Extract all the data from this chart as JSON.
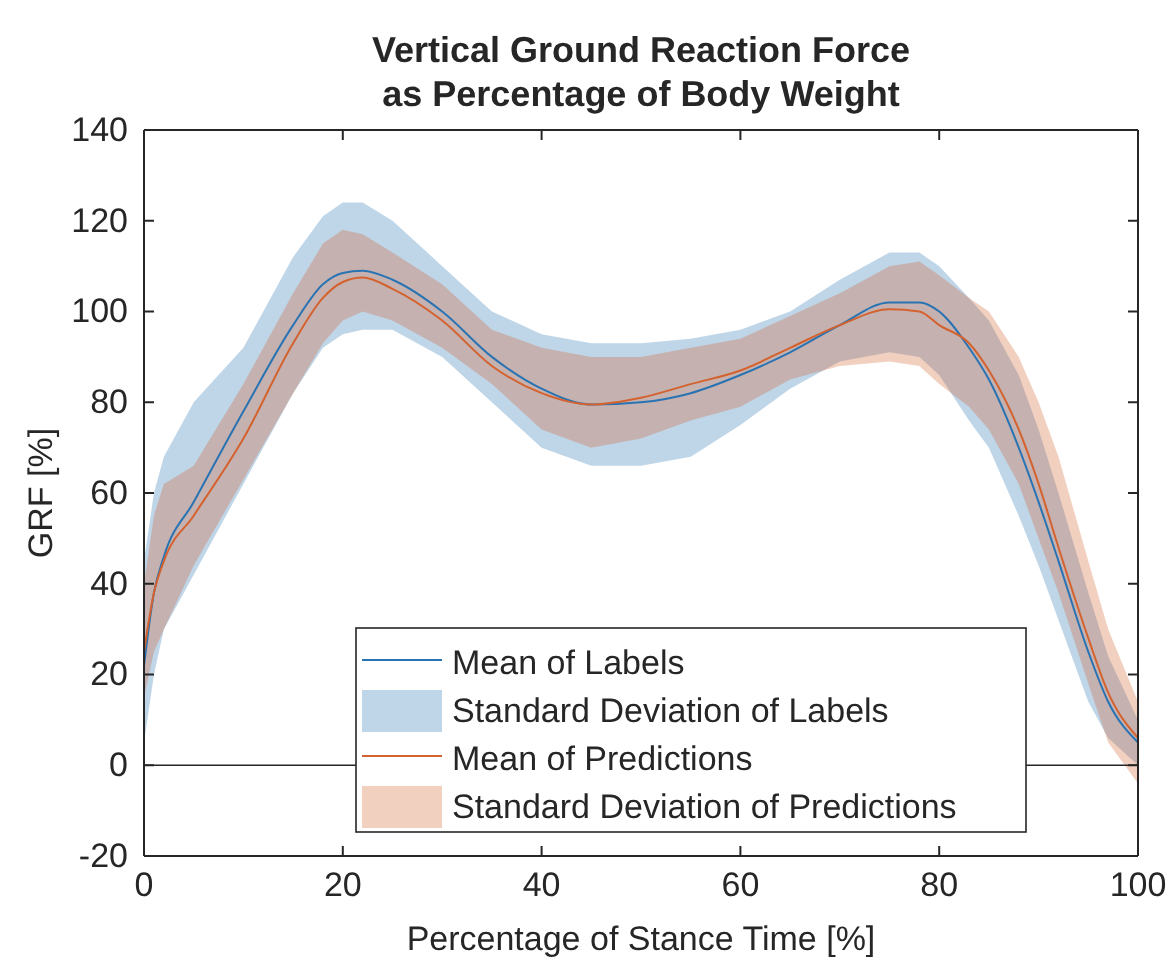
{
  "chart_data": {
    "type": "line",
    "title": "Vertical Ground Reaction Force\nas Percentage of Body Weight",
    "xlabel": "Percentage of Stance Time [%]",
    "ylabel": "GRF [%]",
    "x": [
      0,
      1,
      2,
      5,
      10,
      15,
      18,
      20,
      22,
      25,
      30,
      35,
      40,
      45,
      50,
      55,
      60,
      65,
      70,
      75,
      78,
      80,
      83,
      85,
      88,
      90,
      92,
      95,
      97,
      100
    ],
    "series": [
      {
        "name": "Mean of Labels",
        "type": "line",
        "color": "#2a73b3",
        "values": [
          22,
          38,
          46,
          58,
          78,
          97,
          106,
          108.5,
          109,
          107,
          100,
          90,
          83,
          79.5,
          80,
          82,
          86,
          91,
          97,
          102,
          102,
          100,
          92,
          85,
          70,
          58,
          45,
          25,
          14,
          5
        ],
        "lower": [
          5,
          20,
          30,
          42,
          62,
          82,
          92,
          95,
          96,
          96,
          90,
          80,
          70,
          66,
          66,
          68,
          75,
          83,
          89,
          91,
          90,
          86,
          76,
          70,
          55,
          44,
          32,
          14,
          6,
          0
        ],
        "upper": [
          45,
          60,
          68,
          80,
          92,
          112,
          121,
          124,
          124,
          120,
          110,
          100,
          95,
          93,
          93,
          94,
          96,
          100,
          107,
          113,
          113,
          110,
          103,
          98,
          86,
          74,
          60,
          38,
          24,
          10
        ]
      },
      {
        "name": "Mean of Predictions",
        "color": "#d4622e",
        "values": [
          25,
          38,
          45,
          55,
          72,
          93,
          103,
          106.5,
          107.5,
          105,
          98,
          88,
          82,
          79.5,
          81,
          84,
          87,
          92,
          97,
          100.5,
          100,
          97,
          93,
          87,
          74,
          62,
          48,
          28,
          16,
          6
        ],
        "lower": [
          15,
          25,
          30,
          44,
          63,
          82,
          93,
          98,
          100,
          98,
          92,
          84,
          74,
          70,
          72,
          76,
          79,
          85,
          88,
          89,
          88,
          84,
          79,
          74,
          62,
          50,
          38,
          18,
          5,
          -4
        ],
        "upper": [
          40,
          55,
          62,
          66,
          84,
          104,
          115,
          118,
          117,
          113,
          106,
          96,
          92,
          90,
          90,
          92,
          94,
          99,
          104,
          110,
          111,
          108,
          103,
          100,
          90,
          80,
          68,
          45,
          30,
          14
        ]
      }
    ],
    "annotations": [
      "Standard Deviation of Labels",
      "Standard Deviation of Predictions"
    ],
    "xlim": [
      0,
      100
    ],
    "xticks": [
      0,
      20,
      40,
      60,
      80,
      100
    ],
    "ylim": [
      -20,
      140
    ],
    "yticks": [
      -20,
      0,
      20,
      40,
      60,
      80,
      100,
      120,
      140
    ],
    "ref_lines": [
      {
        "axis": "y",
        "value": 0,
        "color": "#262626"
      }
    ],
    "legend": "bottom"
  }
}
